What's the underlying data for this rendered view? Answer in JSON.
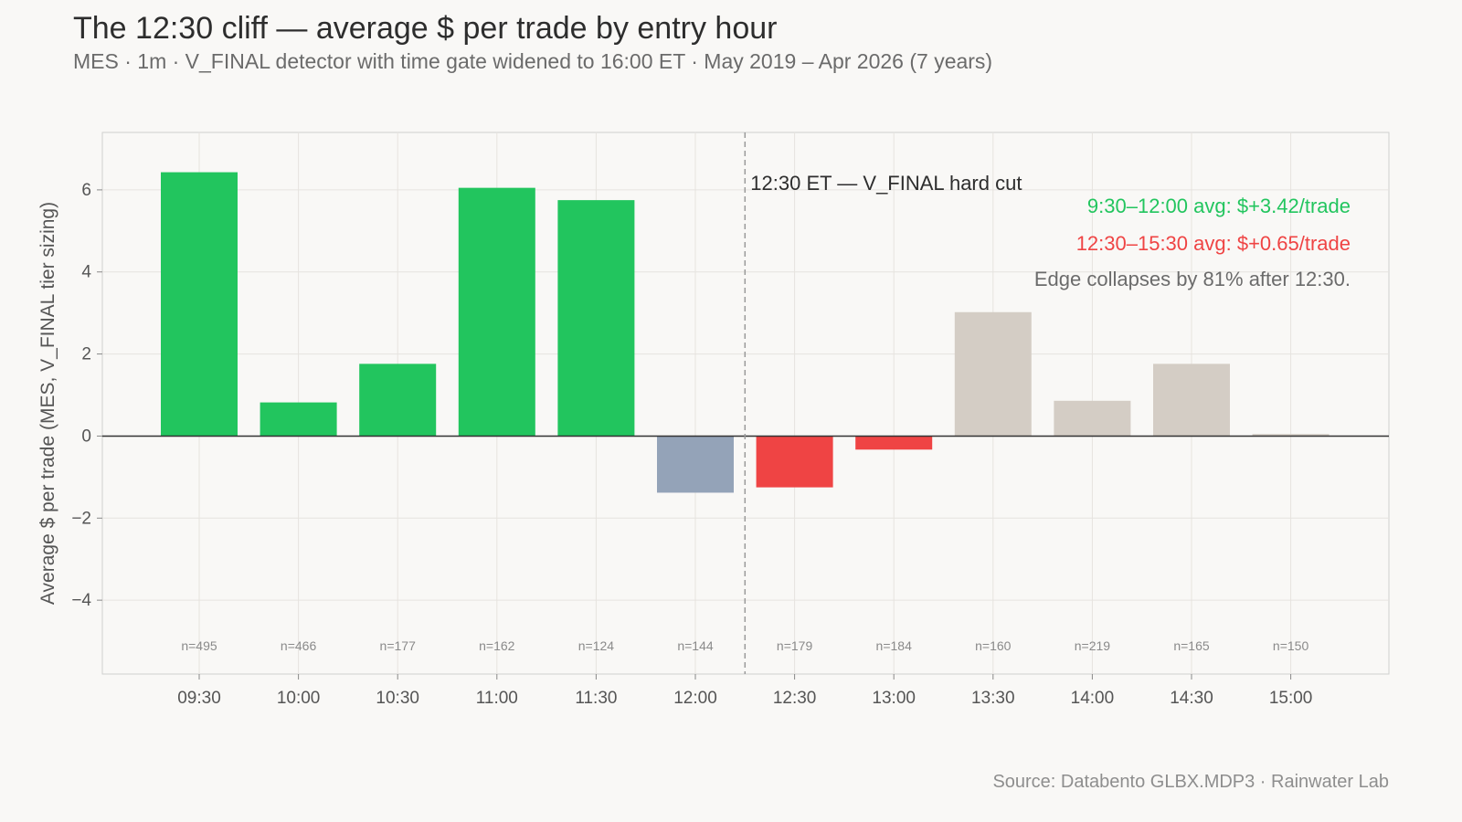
{
  "header": {
    "title": "The 12:30 cliff — average $ per trade by entry hour",
    "subtitle": "MES · 1m · V_FINAL detector with time gate widened to 16:00 ET · May 2019 – Apr 2026 (7 years)"
  },
  "footer": {
    "source": "Source: Databento GLBX.MDP3 · Rainwater Lab"
  },
  "chart_data": {
    "type": "bar",
    "title": "The 12:30 cliff — average $ per trade by entry hour",
    "subtitle": "MES · 1m · V_FINAL detector with time gate widened to 16:00 ET · May 2019 – Apr 2026 (7 years)",
    "xlabel": "",
    "ylabel": "Average $ per trade (MES, V_FINAL tier sizing)",
    "ylim": [
      -5.8,
      7.4
    ],
    "yticks": [
      6,
      4,
      2,
      0,
      -2,
      -4
    ],
    "ytick_labels": [
      "6",
      "4",
      "2",
      "0",
      "−2",
      "−4"
    ],
    "grid": true,
    "categories": [
      "09:30",
      "10:00",
      "10:30",
      "11:00",
      "11:30",
      "12:00",
      "12:30",
      "13:00",
      "13:30",
      "14:00",
      "14:30",
      "15:00"
    ],
    "values": [
      6.43,
      0.82,
      1.76,
      6.05,
      5.75,
      -1.38,
      -1.25,
      -0.33,
      3.02,
      0.86,
      1.76,
      0.05
    ],
    "counts": [
      "n=495",
      "n=466",
      "n=177",
      "n=162",
      "n=124",
      "n=144",
      "n=179",
      "n=184",
      "n=160",
      "n=219",
      "n=165",
      "n=150"
    ],
    "bar_colors": [
      "#22c55e",
      "#22c55e",
      "#22c55e",
      "#22c55e",
      "#22c55e",
      "#94a3b8",
      "#ef4444",
      "#ef4444",
      "#d4cdc5",
      "#d4cdc5",
      "#d4cdc5",
      "#d4cdc5"
    ],
    "cutoff": {
      "after_category": "12:00",
      "label": "12:30 ET — V_FINAL hard cut"
    },
    "annotations": [
      {
        "text": "9:30–12:00 avg: $+3.42/trade",
        "color": "#22c55e"
      },
      {
        "text": "12:30–15:30 avg: $+0.65/trade",
        "color": "#ef4444"
      },
      {
        "text": "Edge collapses by 81% after 12:30.",
        "color": "#6b6b6b"
      }
    ]
  }
}
